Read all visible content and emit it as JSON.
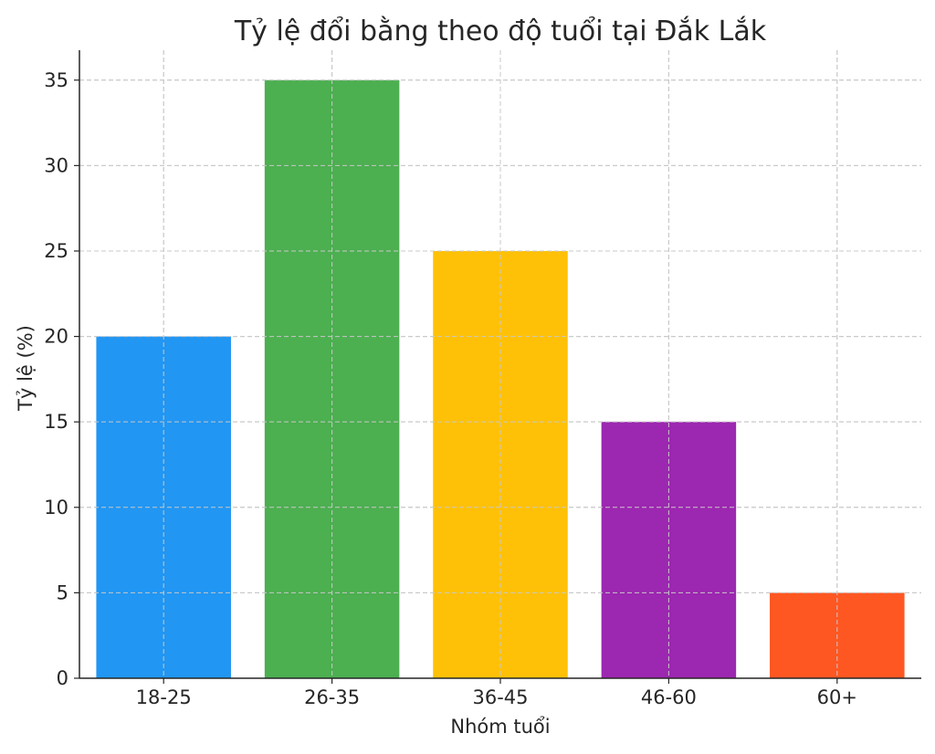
{
  "chart_data": {
    "type": "bar",
    "title": "Tỷ lệ đổi bằng theo độ tuổi tại Đắk Lắk",
    "xlabel": "Nhóm tuổi",
    "ylabel": "Tỷ lệ (%)",
    "categories": [
      "18-25",
      "26-35",
      "36-45",
      "46-60",
      "60+"
    ],
    "values": [
      20,
      35,
      25,
      15,
      5
    ],
    "colors": [
      "#2196F3",
      "#4CAF50",
      "#FFC107",
      "#9C27B0",
      "#FF5722"
    ],
    "ylim": [
      0,
      36.75
    ],
    "yticks": [
      0,
      5,
      10,
      15,
      20,
      25,
      30,
      35
    ],
    "grid": true,
    "legend": "none"
  }
}
